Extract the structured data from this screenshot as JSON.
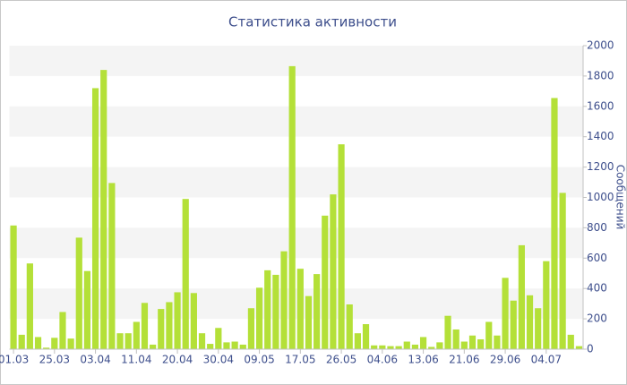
{
  "chart_data": {
    "type": "bar",
    "title": "Статистика активности",
    "y_label": "Сообщений",
    "categories": [
      "01.03",
      null,
      null,
      null,
      null,
      "25.03",
      null,
      null,
      null,
      null,
      "03.04",
      null,
      null,
      null,
      null,
      "11.04",
      null,
      null,
      null,
      null,
      "20.04",
      null,
      null,
      null,
      null,
      "30.04",
      null,
      null,
      null,
      null,
      "09.05",
      null,
      null,
      null,
      null,
      "17.05",
      null,
      null,
      null,
      null,
      "26.05",
      null,
      null,
      null,
      null,
      "04.06",
      null,
      null,
      null,
      null,
      "13.06",
      null,
      null,
      null,
      null,
      "21.06",
      null,
      null,
      null,
      null,
      "29.06",
      null,
      null,
      null,
      null,
      "04.07",
      null,
      null,
      null,
      null
    ],
    "values": [
      815,
      95,
      565,
      80,
      10,
      75,
      245,
      70,
      735,
      515,
      1720,
      1840,
      1095,
      105,
      105,
      180,
      305,
      30,
      265,
      310,
      375,
      990,
      370,
      105,
      35,
      140,
      45,
      50,
      30,
      270,
      405,
      520,
      490,
      645,
      1865,
      530,
      350,
      495,
      880,
      1020,
      1350,
      295,
      105,
      165,
      25,
      25,
      20,
      20,
      50,
      30,
      80,
      15,
      45,
      220,
      130,
      50,
      90,
      65,
      180,
      90,
      470,
      320,
      685,
      355,
      270,
      580,
      1655,
      1030,
      95,
      20
    ],
    "color": "#b4e038",
    "ylim": [
      0,
      2000
    ],
    "yticks": [
      0,
      200,
      400,
      600,
      800,
      1000,
      1200,
      1400,
      1600,
      1800,
      2000
    ],
    "grid_bands": true
  }
}
